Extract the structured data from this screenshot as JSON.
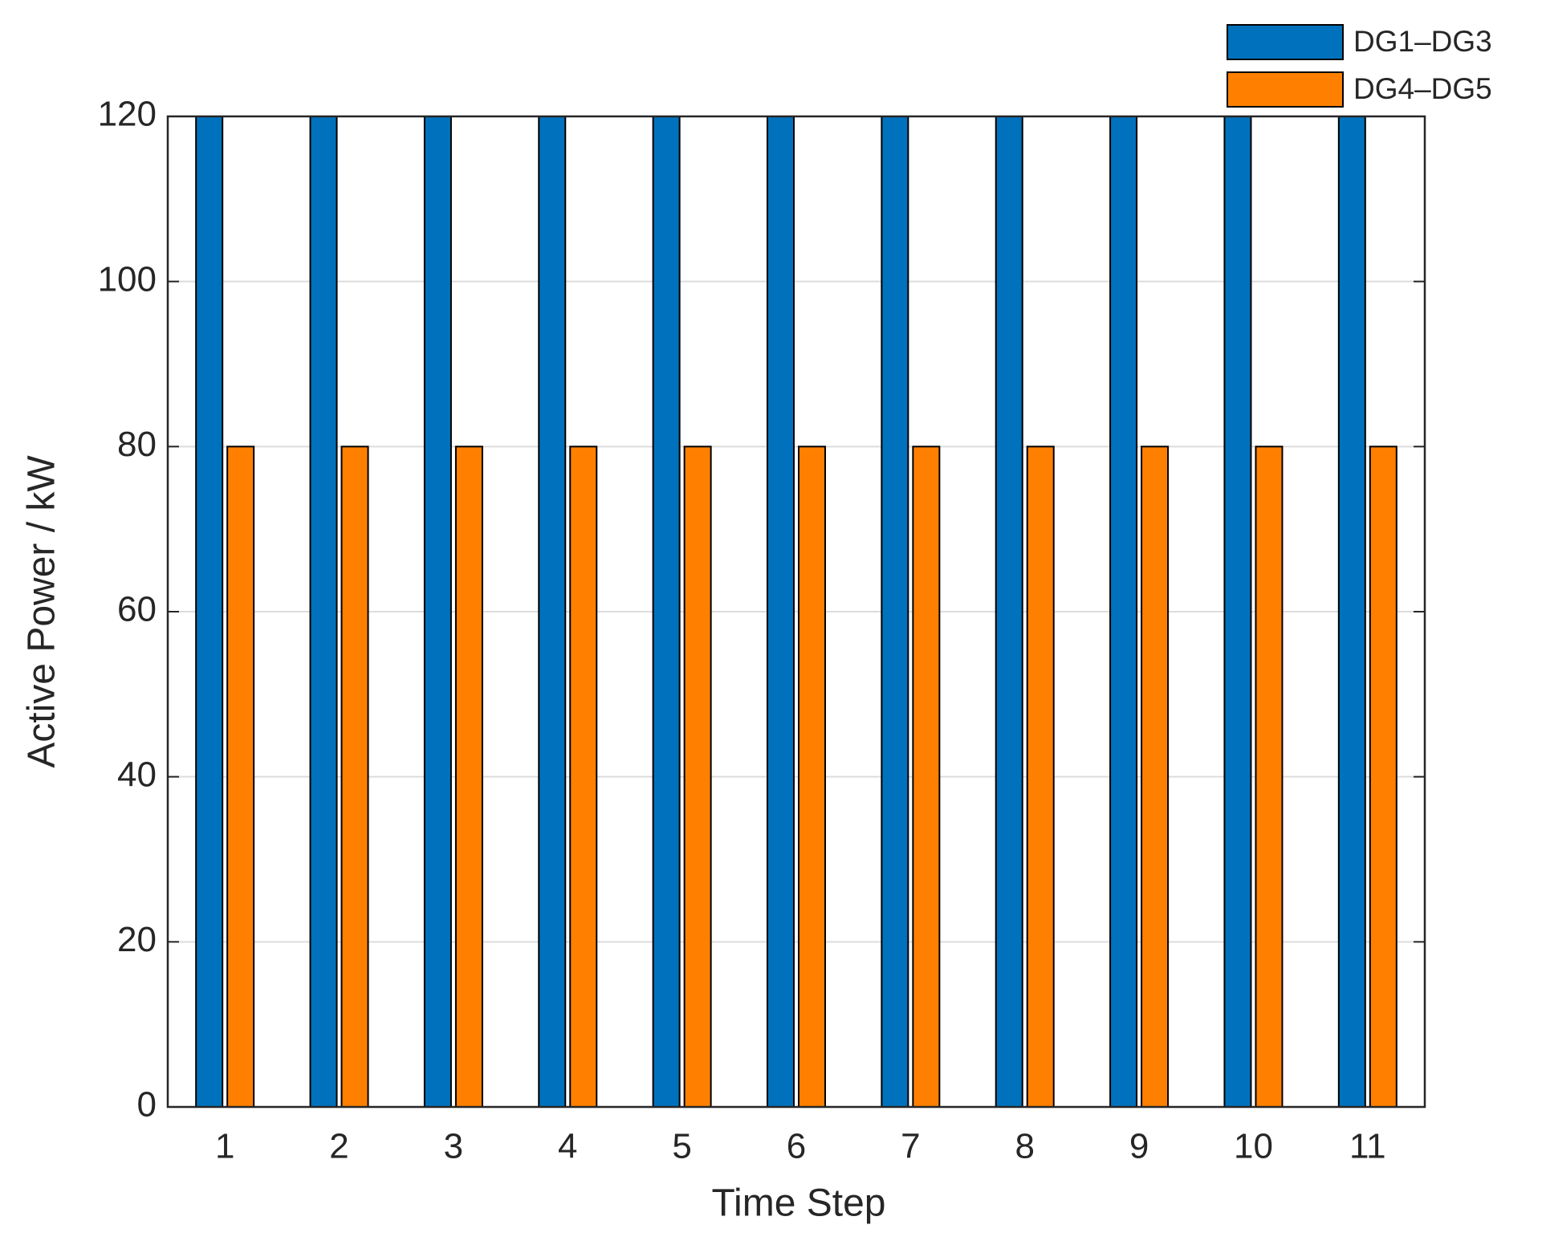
{
  "chart_data": {
    "type": "bar",
    "xlabel": "Time Step",
    "ylabel": "Active Power / kW",
    "categories": [
      "1",
      "2",
      "3",
      "4",
      "5",
      "6",
      "7",
      "8",
      "9",
      "10",
      "11"
    ],
    "series": [
      {
        "name": "DG1–DG3",
        "color": "#0072bd",
        "values": [
          120,
          120,
          120,
          120,
          120,
          120,
          120,
          120,
          120,
          120,
          120
        ]
      },
      {
        "name": "DG4–DG5",
        "color": "#ff8000",
        "values": [
          80,
          80,
          80,
          80,
          80,
          80,
          80,
          80,
          80,
          80,
          80
        ]
      }
    ],
    "ylim": [
      0,
      120
    ],
    "yticks": [
      0,
      20,
      40,
      60,
      80,
      100,
      120
    ],
    "grid": true,
    "legend": "upper right"
  }
}
